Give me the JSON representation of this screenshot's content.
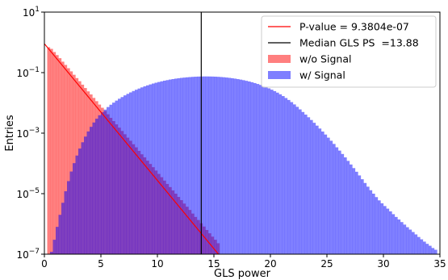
{
  "chart_data": {
    "type": "bar",
    "title": "",
    "xlabel": "GLS power",
    "ylabel": "Entries",
    "xlim": [
      0,
      35
    ],
    "ylim": [
      1e-07,
      10
    ],
    "y_scale": "log",
    "grid": false,
    "legend_placement": "top-right",
    "x_ticks": [
      0,
      5,
      10,
      15,
      20,
      25,
      30,
      35
    ],
    "x_tick_labels": [
      "0",
      "5",
      "10",
      "15",
      "20",
      "25",
      "30",
      "35"
    ],
    "y_ticks": [
      1e-07,
      1e-05,
      0.001,
      0.1,
      10
    ],
    "y_tick_labels": [
      {
        "base": "10",
        "exp": "−7"
      },
      {
        "base": "10",
        "exp": "−5"
      },
      {
        "base": "10",
        "exp": "−3"
      },
      {
        "base": "10",
        "exp": "−1"
      },
      {
        "base": "10",
        "exp": "1"
      }
    ],
    "series": [
      {
        "name": "w/o Signal",
        "kind": "histogram",
        "color": "#ff0000",
        "alpha": 0.5,
        "bin_width": 0.25,
        "x": [
          0.375,
          0.625,
          0.875,
          1.125,
          1.375,
          1.625,
          1.875,
          2.125,
          2.375,
          2.625,
          2.875,
          3.125,
          3.375,
          3.625,
          3.875,
          4.125,
          4.375,
          4.625,
          4.875,
          5.125,
          5.375,
          5.625,
          5.875,
          6.125,
          6.375,
          6.625,
          6.875,
          7.125,
          7.375,
          7.625,
          7.875,
          8.125,
          8.375,
          8.625,
          8.875,
          9.125,
          9.375,
          9.625,
          9.875,
          10.125,
          10.375,
          10.625,
          10.875,
          11.125,
          11.375,
          11.625,
          11.875,
          12.125,
          12.375,
          12.625,
          12.875,
          13.125,
          13.375,
          13.625,
          13.875,
          14.125,
          14.375,
          14.625,
          14.875,
          15.125,
          15.375
        ],
        "values": [
          0.69,
          0.61,
          0.48,
          0.38,
          0.3,
          0.23,
          0.18,
          0.14,
          0.11,
          0.085,
          0.066,
          0.052,
          0.04,
          0.031,
          0.024,
          0.019,
          0.0146,
          0.0114,
          0.0088,
          0.0069,
          0.0054,
          0.0042,
          0.0032,
          0.0025,
          0.00195,
          0.00152,
          0.00118,
          0.00092,
          0.00071,
          0.00056,
          0.00043,
          0.00034,
          0.00026,
          0.0002,
          0.000158,
          0.000123,
          9.6e-05,
          7.5e-05,
          5.8e-05,
          4.5e-05,
          3.5e-05,
          2.7e-05,
          2.1e-05,
          1.65e-05,
          1.28e-05,
          1e-05,
          7.8e-06,
          6.1e-06,
          4.7e-06,
          3.7e-06,
          2.9e-06,
          2.2e-06,
          1.7e-06,
          1.35e-06,
          1.05e-06,
          8.2e-07,
          6.3e-07,
          4.9e-07,
          3.8e-07,
          3e-07,
          2.3e-07
        ]
      },
      {
        "name": "w/ Signal",
        "kind": "histogram",
        "color": "#0000ff",
        "alpha": 0.5,
        "bin_width": 0.25,
        "x": [
          0.625,
          0.875,
          1.125,
          1.375,
          1.625,
          1.875,
          2.125,
          2.375,
          2.625,
          2.875,
          3.125,
          3.375,
          3.625,
          3.875,
          4.125,
          4.375,
          4.625,
          4.875,
          5.125,
          5.375,
          5.625,
          5.875,
          6.125,
          6.375,
          6.625,
          6.875,
          7.125,
          7.375,
          7.625,
          7.875,
          8.125,
          8.375,
          8.625,
          8.875,
          9.125,
          9.375,
          9.625,
          9.875,
          10.125,
          10.375,
          10.625,
          10.875,
          11.125,
          11.375,
          11.625,
          11.875,
          12.125,
          12.375,
          12.625,
          12.875,
          13.125,
          13.375,
          13.625,
          13.875,
          14.125,
          14.375,
          14.625,
          14.875,
          15.125,
          15.375,
          15.625,
          15.875,
          16.125,
          16.375,
          16.625,
          16.875,
          17.125,
          17.375,
          17.625,
          17.875,
          18.125,
          18.375,
          18.625,
          18.875,
          19.125,
          19.375,
          19.625,
          19.875,
          20.125,
          20.375,
          20.625,
          20.875,
          21.125,
          21.375,
          21.625,
          21.875,
          22.125,
          22.375,
          22.625,
          22.875,
          23.125,
          23.375,
          23.625,
          23.875,
          24.125,
          24.375,
          24.625,
          24.875,
          25.125,
          25.375,
          25.625,
          25.875,
          26.125,
          26.375,
          26.625,
          26.875,
          27.125,
          27.375,
          27.625,
          27.875,
          28.125,
          28.375,
          28.625,
          28.875,
          29.125,
          29.375,
          29.625,
          29.875,
          30.125,
          30.375,
          30.625,
          30.875,
          31.125,
          31.375,
          31.625,
          31.875,
          32.125,
          32.375,
          32.625,
          32.875,
          33.125,
          33.375,
          33.625,
          33.875,
          34.125,
          34.375,
          34.625
        ],
        "values": [
          1.2e-07,
          3e-07,
          8e-07,
          2e-06,
          5e-06,
          1.2e-05,
          2.6e-05,
          5.4e-05,
          0.000102,
          0.000182,
          0.00031,
          0.0005,
          0.00077,
          0.00114,
          0.00162,
          0.00225,
          0.003,
          0.0039,
          0.0049,
          0.006,
          0.0073,
          0.0087,
          0.0102,
          0.0119,
          0.0137,
          0.0156,
          0.0177,
          0.0199,
          0.0222,
          0.0247,
          0.0272,
          0.0298,
          0.0325,
          0.0352,
          0.038,
          0.0408,
          0.0436,
          0.0464,
          0.049,
          0.0516,
          0.0542,
          0.0566,
          0.059,
          0.0612,
          0.0633,
          0.0652,
          0.067,
          0.0686,
          0.07,
          0.0713,
          0.0724,
          0.0733,
          0.074,
          0.0745,
          0.0748,
          0.0748,
          0.0746,
          0.0742,
          0.0736,
          0.0727,
          0.0716,
          0.0704,
          0.0689,
          0.0672,
          0.0654,
          0.0633,
          0.0611,
          0.0588,
          0.0563,
          0.0537,
          0.051,
          0.0481,
          0.0452,
          0.0422,
          0.0392,
          0.0362,
          0.0332,
          0.0302,
          0.0273,
          0.0245,
          0.0218,
          0.0192,
          0.0168,
          0.0145,
          0.0125,
          0.0106,
          0.0089,
          0.0074,
          0.0061,
          0.005,
          0.0041,
          0.00335,
          0.00272,
          0.0022,
          0.00177,
          0.00142,
          0.00113,
          0.0009,
          0.00071,
          0.00056,
          0.00044,
          0.00034,
          0.000265,
          0.000205,
          0.000158,
          0.000121,
          9.2e-05,
          7e-05,
          5.3e-05,
          4e-05,
          3e-05,
          2.25e-05,
          1.7e-05,
          1.3e-05,
          1e-05,
          7.7e-06,
          6e-06,
          4.8e-06,
          3.9e-06,
          3.2e-06,
          2.6e-06,
          2.1e-06,
          1.7e-06,
          1.4e-06,
          1.15e-06,
          9.5e-07,
          7.8e-07,
          6.5e-07,
          5.4e-07,
          4.5e-07,
          3.7e-07,
          3.1e-07,
          2.6e-07,
          2.2e-07,
          1.9e-07,
          1.6e-07,
          1.4e-07
        ]
      },
      {
        "name": "P-value = 9.3804e-07",
        "kind": "line",
        "color": "#ff0000",
        "x": [
          0,
          15.4
        ],
        "y": [
          0.9,
          1e-07
        ]
      },
      {
        "name": "Median GLS PS  =13.88",
        "kind": "vline",
        "color": "#000000",
        "x": 13.88
      }
    ]
  }
}
